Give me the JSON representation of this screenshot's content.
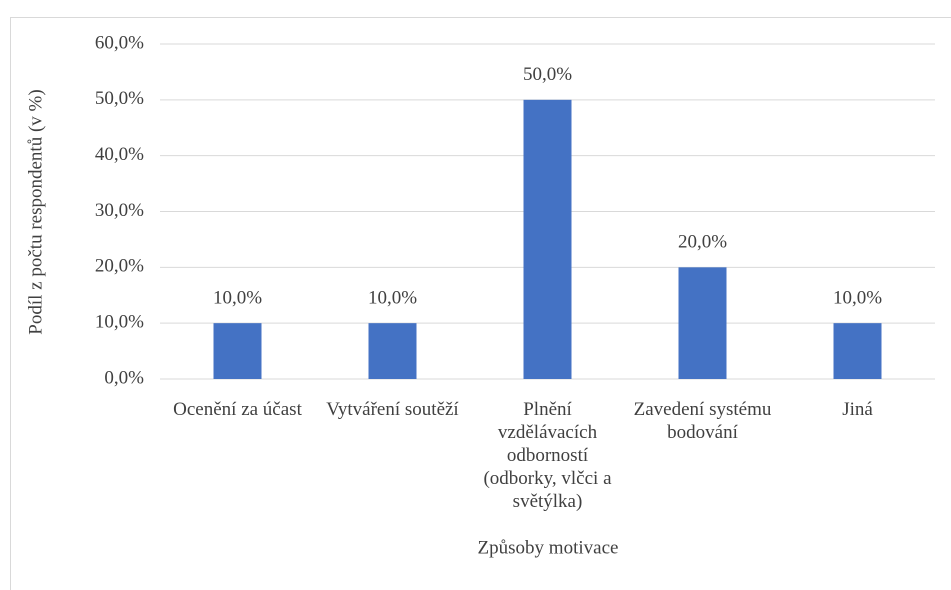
{
  "chart_data": {
    "type": "bar",
    "y_axis_label": "Podíl z počtu respondentů (v %)",
    "x_axis_label": "Způsoby motivace",
    "categories": [
      "Ocenění za účast",
      "Vytváření soutěží",
      "Plnění vzdělávacích odborností (odborky, vlčci a světýlka)",
      "Zavedení systému bodování",
      "Jiná"
    ],
    "values": [
      10,
      10,
      50,
      20,
      10
    ],
    "value_labels": [
      "10,0%",
      "10,0%",
      "50,0%",
      "20,0%",
      "10,0%"
    ],
    "color": "#4472c4",
    "ylim": [
      0,
      60
    ],
    "yticks": [
      {
        "value": 0,
        "label": "0,0%"
      },
      {
        "value": 10,
        "label": "10,0%"
      },
      {
        "value": 20,
        "label": "20,0%"
      },
      {
        "value": 30,
        "label": "30,0%"
      },
      {
        "value": 40,
        "label": "40,0%"
      },
      {
        "value": 50,
        "label": "50,0%"
      },
      {
        "value": 60,
        "label": "60,0%"
      }
    ],
    "grid": true
  }
}
